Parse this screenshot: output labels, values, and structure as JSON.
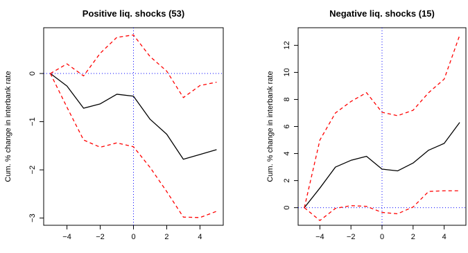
{
  "chart_data": [
    {
      "type": "line",
      "title": "Positive liq. shocks (53)",
      "xlabel": "",
      "ylabel": "Cum. % change in interbank rate",
      "x": [
        -5,
        -4,
        -3,
        -2,
        -1,
        0,
        1,
        2,
        3,
        4,
        5
      ],
      "xlim": [
        -5.4,
        5.4
      ],
      "ylim": [
        -3.15,
        0.95
      ],
      "xticks": [
        -4,
        -2,
        0,
        2,
        4
      ],
      "yticks": [
        -3,
        -2,
        -1,
        0
      ],
      "grid": false,
      "legend": "none",
      "series": [
        {
          "style": "solid",
          "color": "#000000",
          "values": [
            0.0,
            -0.26,
            -0.72,
            -0.63,
            -0.43,
            -0.47,
            -0.95,
            -1.26,
            -1.78,
            -1.68,
            -1.58
          ]
        },
        {
          "style": "dashed",
          "color": "#ff0000",
          "values": [
            0.0,
            0.2,
            -0.05,
            0.42,
            0.75,
            0.8,
            0.35,
            0.05,
            -0.5,
            -0.25,
            -0.18
          ]
        },
        {
          "style": "dashed",
          "color": "#ff0000",
          "values": [
            0.0,
            -0.7,
            -1.38,
            -1.53,
            -1.44,
            -1.52,
            -1.95,
            -2.45,
            -2.98,
            -2.99,
            -2.86
          ]
        }
      ],
      "reference_lines": {
        "y": 0,
        "x": 0,
        "style": "dotted",
        "color": "#0000ff"
      }
    },
    {
      "type": "line",
      "title": "Negative liq. shocks (15)",
      "xlabel": "",
      "ylabel": "Cum. % change in interbank rate",
      "x": [
        -5,
        -4,
        -3,
        -2,
        -1,
        0,
        1,
        2,
        3,
        4,
        5
      ],
      "xlim": [
        -5.4,
        5.4
      ],
      "ylim": [
        -1.3,
        13.3
      ],
      "xticks": [
        -4,
        -2,
        0,
        2,
        4
      ],
      "yticks": [
        0,
        2,
        4,
        6,
        8,
        10,
        12
      ],
      "grid": false,
      "legend": "none",
      "series": [
        {
          "style": "solid",
          "color": "#000000",
          "values": [
            0.0,
            1.45,
            3.0,
            3.5,
            3.8,
            2.85,
            2.72,
            3.3,
            4.25,
            4.75,
            6.3
          ]
        },
        {
          "style": "dashed",
          "color": "#ff0000",
          "values": [
            0.0,
            5.0,
            7.0,
            7.85,
            8.5,
            7.05,
            6.8,
            7.2,
            8.5,
            9.5,
            12.75
          ]
        },
        {
          "style": "dashed",
          "color": "#ff0000",
          "values": [
            0.0,
            -0.95,
            -0.05,
            0.15,
            0.1,
            -0.35,
            -0.45,
            0.05,
            1.2,
            1.25,
            1.25
          ]
        }
      ],
      "reference_lines": {
        "y": 0,
        "x": 0,
        "style": "dotted",
        "color": "#0000ff"
      }
    }
  ]
}
